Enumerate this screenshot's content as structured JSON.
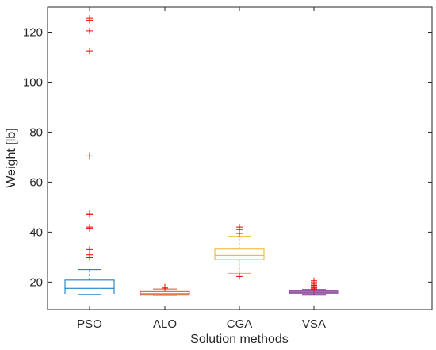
{
  "chart_data": {
    "type": "box",
    "xlabel": "Solution methods",
    "ylabel": "Weight [lb]",
    "ylim": [
      9,
      130
    ],
    "yticks": [
      20,
      40,
      60,
      80,
      100,
      120
    ],
    "categories": [
      "PSO",
      "ALO",
      "CGA",
      "VSA"
    ],
    "grid": false,
    "series": [
      {
        "name": "PSO",
        "color": "#0072BD",
        "whisker_low": 15,
        "q1": 15.2,
        "median": 17.5,
        "q3": 20.8,
        "whisker_high": 25,
        "outliers": [
          29.8,
          31,
          33,
          41.5,
          42,
          47,
          47.5,
          70.5,
          112.5,
          120.5,
          124.8,
          125.5
        ]
      },
      {
        "name": "ALO",
        "color": "#D95319",
        "whisker_low": 14.7,
        "q1": 14.8,
        "median": 15.4,
        "q3": 16.2,
        "whisker_high": 17.2,
        "outliers": [
          17.6,
          18
        ]
      },
      {
        "name": "CGA",
        "color": "#EDB120",
        "whisker_low": 23.5,
        "q1": 29,
        "median": 30.8,
        "q3": 33.2,
        "whisker_high": 38.3,
        "outliers": [
          22.2,
          39.5,
          41,
          42
        ]
      },
      {
        "name": "VSA",
        "color": "#7E2F8E",
        "whisker_low": 14.8,
        "q1": 15.6,
        "median": 16.0,
        "q3": 16.4,
        "whisker_high": 17.0,
        "outliers": [
          17.3,
          17.7,
          18.2,
          18.7,
          19.2,
          19.8,
          20.5
        ]
      }
    ],
    "outlier_color": "#FF0000"
  }
}
